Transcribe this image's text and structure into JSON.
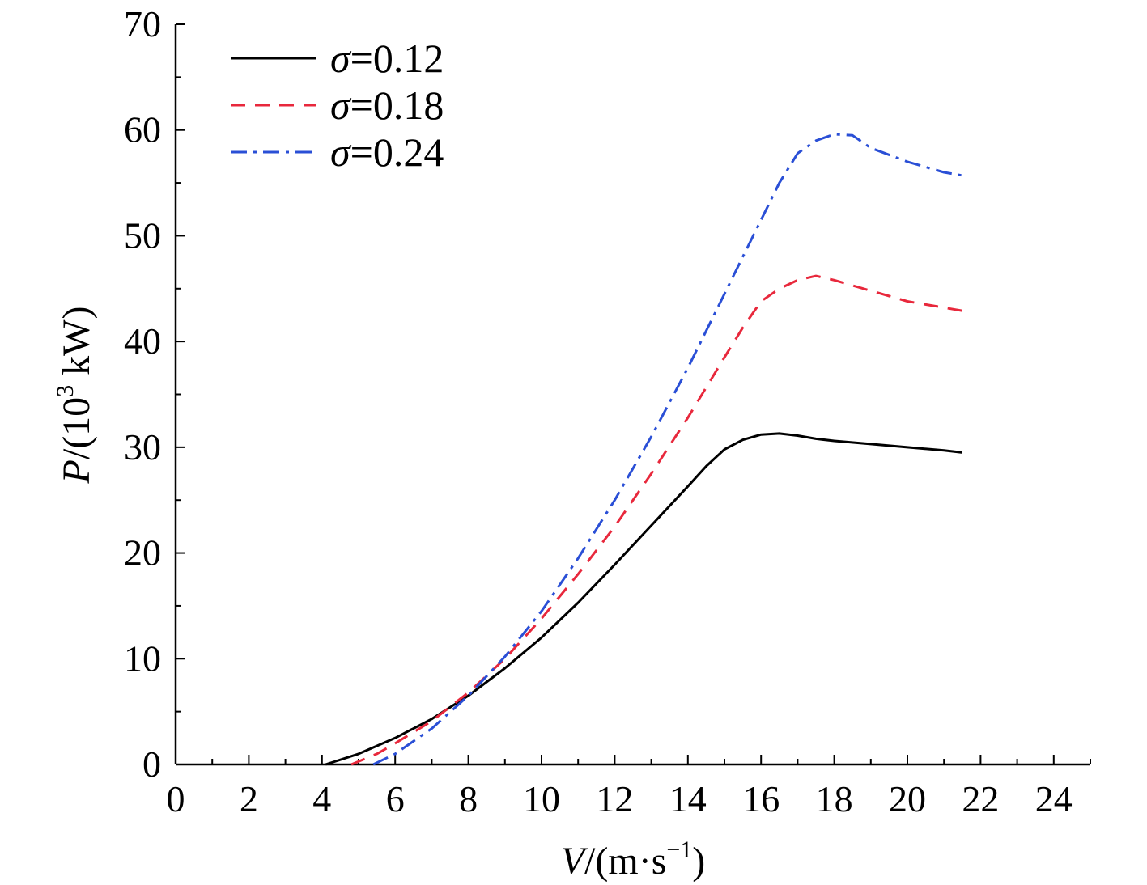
{
  "chart_data": {
    "type": "line",
    "title": "",
    "xlabel": {
      "symbol": "V",
      "unit_prefix": "/(m·s",
      "unit_exp": "−1",
      "unit_suffix": ")"
    },
    "ylabel": {
      "symbol": "P",
      "unit_prefix": "/(10",
      "unit_exp": "3",
      "unit_suffix": " kW)"
    },
    "xlim": [
      0,
      25
    ],
    "ylim": [
      0,
      70
    ],
    "x_ticks": [
      "0",
      "2",
      "4",
      "6",
      "8",
      "10",
      "12",
      "14",
      "16",
      "18",
      "20",
      "22",
      "24"
    ],
    "y_ticks": [
      "0",
      "10",
      "20",
      "30",
      "40",
      "50",
      "60",
      "70"
    ],
    "grid": false,
    "legend_position": "top-left",
    "series": [
      {
        "name": "σ=0.12",
        "name_symbol": "σ",
        "name_value": "=0.12",
        "color": "#000000",
        "dash": "solid",
        "points": [
          [
            4.1,
            0
          ],
          [
            5,
            1.0
          ],
          [
            6,
            2.5
          ],
          [
            7,
            4.3
          ],
          [
            8,
            6.5
          ],
          [
            9,
            9.1
          ],
          [
            10,
            12.0
          ],
          [
            11,
            15.3
          ],
          [
            12,
            18.9
          ],
          [
            13,
            22.6
          ],
          [
            14,
            26.3
          ],
          [
            14.5,
            28.2
          ],
          [
            15,
            29.8
          ],
          [
            15.5,
            30.7
          ],
          [
            16,
            31.2
          ],
          [
            16.5,
            31.3
          ],
          [
            17,
            31.1
          ],
          [
            17.5,
            30.8
          ],
          [
            18,
            30.6
          ],
          [
            19,
            30.3
          ],
          [
            20,
            30.0
          ],
          [
            21,
            29.7
          ],
          [
            21.5,
            29.5
          ]
        ]
      },
      {
        "name": "σ=0.18",
        "name_symbol": "σ",
        "name_value": "=0.18",
        "color": "#e8283c",
        "dash": "dashed",
        "points": [
          [
            4.8,
            0
          ],
          [
            5.5,
            1.0
          ],
          [
            6,
            2.0
          ],
          [
            7,
            4.1
          ],
          [
            8,
            6.8
          ],
          [
            9,
            10.0
          ],
          [
            10,
            13.8
          ],
          [
            11,
            18.0
          ],
          [
            12,
            22.5
          ],
          [
            13,
            27.5
          ],
          [
            14,
            32.8
          ],
          [
            15,
            38.5
          ],
          [
            15.5,
            41.3
          ],
          [
            16,
            43.8
          ],
          [
            16.5,
            45.0
          ],
          [
            17,
            45.8
          ],
          [
            17.5,
            46.2
          ],
          [
            18,
            45.8
          ],
          [
            19,
            44.8
          ],
          [
            20,
            43.8
          ],
          [
            21,
            43.2
          ],
          [
            21.5,
            42.9
          ]
        ]
      },
      {
        "name": "σ=0.24",
        "name_symbol": "σ",
        "name_value": "=0.24",
        "color": "#2a4fd6",
        "dash": "dashdot",
        "points": [
          [
            5.4,
            0
          ],
          [
            6,
            1.0
          ],
          [
            7,
            3.4
          ],
          [
            8,
            6.5
          ],
          [
            9,
            10.2
          ],
          [
            10,
            14.5
          ],
          [
            11,
            19.5
          ],
          [
            12,
            25.0
          ],
          [
            13,
            31.0
          ],
          [
            14,
            37.5
          ],
          [
            15,
            44.5
          ],
          [
            16,
            51.5
          ],
          [
            16.5,
            55.0
          ],
          [
            17,
            57.8
          ],
          [
            17.5,
            59.0
          ],
          [
            18,
            59.6
          ],
          [
            18.5,
            59.5
          ],
          [
            19,
            58.3
          ],
          [
            20,
            57.0
          ],
          [
            21,
            56.0
          ],
          [
            21.5,
            55.7
          ]
        ]
      }
    ]
  }
}
